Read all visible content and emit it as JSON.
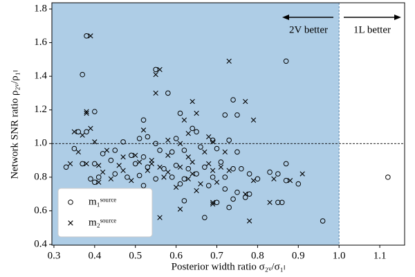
{
  "chart_data": {
    "type": "scatter",
    "x_label": "Posterior width ratio  σ₂ᵥ/σ₁ₗ",
    "y_label": "Network SNR ratio  ρ₂ᵥ/ρ₁ₗ",
    "xlim": [
      0.295,
      1.161
    ],
    "ylim": [
      0.396,
      1.837
    ],
    "xticks": [
      0.3,
      0.4,
      0.5,
      0.6,
      0.7,
      0.8,
      0.9,
      {
        "value": 1,
        "label": "1.0"
      },
      1.1
    ],
    "yticks": [
      0.4,
      0.6,
      0.8,
      {
        "value": 1,
        "label": "1.0"
      },
      1.2,
      1.4,
      1.6,
      1.8
    ],
    "shade_xmax": 1,
    "shade_color": "#aecde6",
    "hline": 1,
    "vline": 1,
    "annotations": [
      "2V better",
      "1L better"
    ],
    "legend": "lower left",
    "series": [
      {
        "name": "m₁ˢᵒᵘʳᶜᵉ",
        "marker": "circle",
        "color": "#000000",
        "x": [
          0.38,
          0.37,
          0.87,
          0.55,
          0.58,
          0.74,
          0.52,
          0.4,
          0.61,
          0.75,
          0.72,
          0.36,
          0.38,
          0.64,
          0.65,
          0.53,
          0.51,
          0.47,
          0.55,
          0.6,
          0.69,
          0.73,
          0.35,
          0.42,
          0.45,
          0.49,
          0.52,
          0.56,
          0.59,
          0.62,
          0.66,
          0.7,
          0.75,
          0.33,
          0.37,
          0.4,
          0.44,
          0.5,
          0.53,
          0.57,
          0.6,
          0.63,
          0.67,
          0.71,
          0.74,
          0.76,
          0.39,
          0.41,
          0.45,
          0.48,
          0.51,
          0.55,
          0.59,
          0.62,
          0.65,
          0.69,
          0.72,
          0.78,
          0.8,
          0.83,
          0.85,
          0.87,
          0.9,
          0.4,
          0.52,
          0.61,
          0.68,
          0.72,
          0.75,
          0.77,
          0.62,
          0.7,
          0.73,
          0.74,
          0.67,
          0.85,
          0.86,
          0.96,
          1.12,
          0.78,
          0.87
        ],
        "y": [
          1.64,
          1.41,
          1.49,
          1.44,
          1.3,
          1.26,
          1.14,
          1.19,
          1.18,
          1.17,
          1.17,
          1.07,
          1.07,
          1.09,
          1.07,
          1.04,
          1.03,
          1.01,
          1.0,
          1.03,
          1.02,
          1.02,
          0.97,
          0.94,
          0.96,
          0.93,
          0.92,
          0.96,
          0.95,
          0.96,
          0.98,
          0.97,
          0.95,
          0.86,
          0.88,
          0.88,
          0.9,
          0.88,
          0.86,
          0.85,
          0.87,
          0.85,
          0.86,
          0.89,
          0.85,
          0.85,
          0.79,
          0.8,
          0.82,
          0.8,
          0.81,
          0.79,
          0.8,
          0.79,
          0.82,
          0.8,
          0.8,
          0.82,
          0.79,
          0.83,
          0.82,
          0.88,
          0.76,
          0.77,
          0.75,
          0.76,
          0.75,
          0.73,
          0.71,
          0.68,
          0.66,
          0.65,
          0.62,
          0.67,
          0.56,
          0.65,
          0.65,
          0.54,
          0.8,
          0.7,
          0.78
        ]
      },
      {
        "name": "m₂ˢᵒᵘʳᶜᵉ",
        "marker": "cross",
        "color": "#000000",
        "x": [
          0.39,
          0.56,
          0.55,
          0.73,
          0.55,
          0.64,
          0.77,
          0.38,
          0.38,
          0.62,
          0.65,
          0.79,
          0.35,
          0.37,
          0.39,
          0.52,
          0.63,
          0.68,
          0.4,
          0.58,
          0.61,
          0.69,
          0.36,
          0.43,
          0.47,
          0.5,
          0.54,
          0.58,
          0.63,
          0.67,
          0.72,
          0.38,
          0.41,
          0.46,
          0.51,
          0.54,
          0.56,
          0.61,
          0.64,
          0.68,
          0.71,
          0.34,
          0.42,
          0.47,
          0.53,
          0.58,
          0.64,
          0.69,
          0.73,
          0.44,
          0.49,
          0.57,
          0.63,
          0.66,
          0.7,
          0.79,
          0.84,
          0.88,
          0.91,
          0.41,
          0.6,
          0.65,
          0.69,
          0.69,
          0.77,
          0.83,
          0.61,
          0.56,
          0.78
        ],
        "y": [
          1.64,
          1.44,
          1.41,
          1.49,
          1.3,
          1.25,
          1.25,
          1.19,
          1.18,
          1.14,
          1.18,
          1.14,
          1.07,
          1.05,
          1.09,
          1.08,
          1.06,
          1.04,
          1.01,
          1.02,
          1.0,
          1.01,
          0.95,
          0.96,
          0.92,
          0.93,
          0.9,
          0.93,
          0.92,
          0.95,
          0.95,
          0.88,
          0.87,
          0.87,
          0.89,
          0.88,
          0.86,
          0.86,
          0.89,
          0.88,
          0.86,
          0.88,
          0.83,
          0.84,
          0.84,
          0.83,
          0.82,
          0.84,
          0.84,
          0.79,
          0.78,
          0.8,
          0.79,
          0.76,
          0.77,
          0.78,
          0.79,
          0.78,
          0.82,
          0.77,
          0.74,
          0.72,
          0.65,
          0.64,
          0.7,
          0.65,
          0.61,
          0.56,
          0.54
        ]
      }
    ]
  }
}
